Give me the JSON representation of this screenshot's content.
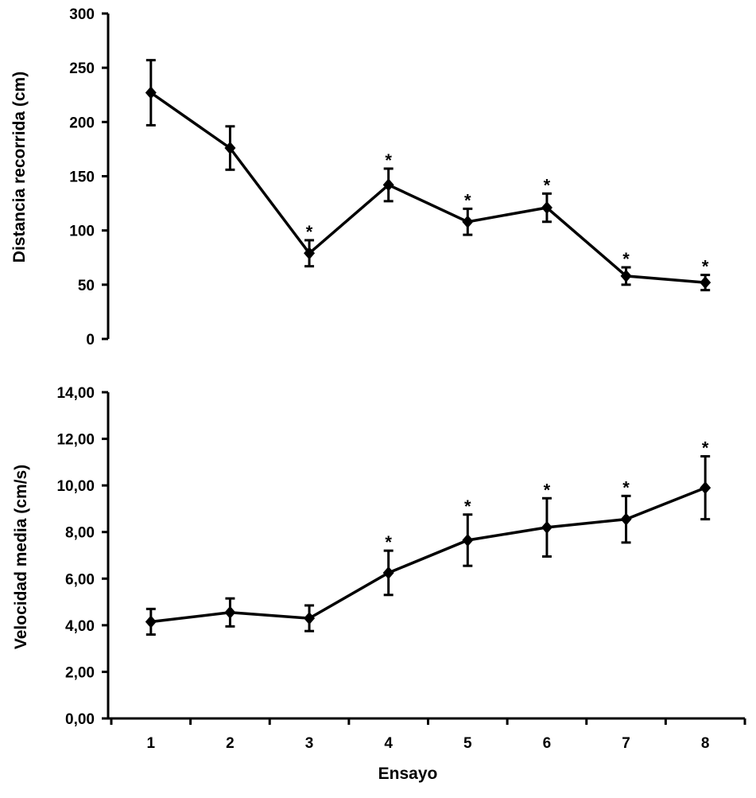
{
  "chart_data": [
    {
      "type": "line",
      "panel": "top",
      "title": "",
      "xlabel": "",
      "ylabel": "Distancia recorrida (cm)",
      "categories": [
        "1",
        "2",
        "3",
        "4",
        "5",
        "6",
        "7",
        "8"
      ],
      "values": [
        227,
        176,
        79,
        142,
        108,
        121,
        58,
        52
      ],
      "error": [
        30,
        20,
        12,
        15,
        12,
        13,
        8,
        7
      ],
      "significant": [
        false,
        false,
        true,
        true,
        true,
        true,
        true,
        true
      ],
      "marker_text": "*",
      "ylim": [
        0,
        300
      ],
      "yticks": [
        "0",
        "50",
        "100",
        "150",
        "200",
        "250",
        "300"
      ],
      "ytick_values": [
        0,
        50,
        100,
        150,
        200,
        250,
        300
      ],
      "grid": false,
      "color": "#000000"
    },
    {
      "type": "line",
      "panel": "bottom",
      "title": "",
      "xlabel": "Ensayo",
      "ylabel": "Velocidad media (cm/s)",
      "categories": [
        "1",
        "2",
        "3",
        "4",
        "5",
        "6",
        "7",
        "8"
      ],
      "values": [
        4.15,
        4.55,
        4.3,
        6.25,
        7.65,
        8.2,
        8.55,
        9.9
      ],
      "error": [
        0.55,
        0.6,
        0.55,
        0.95,
        1.1,
        1.25,
        1.0,
        1.35
      ],
      "significant": [
        false,
        false,
        false,
        true,
        true,
        true,
        true,
        true
      ],
      "marker_text": "*",
      "ylim": [
        0,
        14
      ],
      "yticks": [
        "0,00",
        "2,00",
        "4,00",
        "6,00",
        "8,00",
        "10,00",
        "12,00",
        "14,00"
      ],
      "ytick_values": [
        0,
        2,
        4,
        6,
        8,
        10,
        12,
        14
      ],
      "grid": false,
      "color": "#000000"
    }
  ]
}
